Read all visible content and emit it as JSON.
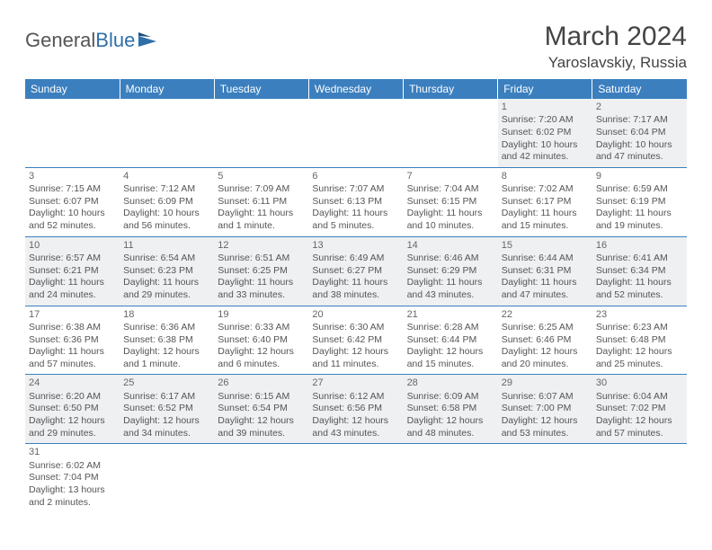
{
  "logo": {
    "part1": "General",
    "part2": "Blue"
  },
  "header": {
    "title": "March 2024",
    "location": "Yaroslavskiy, Russia"
  },
  "colors": {
    "header_bg": "#3b7fbf",
    "row_alt": "#eef0f1",
    "text": "#555555"
  },
  "weekdays": [
    "Sunday",
    "Monday",
    "Tuesday",
    "Wednesday",
    "Thursday",
    "Friday",
    "Saturday"
  ],
  "weeks": [
    [
      null,
      null,
      null,
      null,
      null,
      {
        "n": "1",
        "sr": "Sunrise: 7:20 AM",
        "ss": "Sunset: 6:02 PM",
        "dl1": "Daylight: 10 hours",
        "dl2": "and 42 minutes."
      },
      {
        "n": "2",
        "sr": "Sunrise: 7:17 AM",
        "ss": "Sunset: 6:04 PM",
        "dl1": "Daylight: 10 hours",
        "dl2": "and 47 minutes."
      }
    ],
    [
      {
        "n": "3",
        "sr": "Sunrise: 7:15 AM",
        "ss": "Sunset: 6:07 PM",
        "dl1": "Daylight: 10 hours",
        "dl2": "and 52 minutes."
      },
      {
        "n": "4",
        "sr": "Sunrise: 7:12 AM",
        "ss": "Sunset: 6:09 PM",
        "dl1": "Daylight: 10 hours",
        "dl2": "and 56 minutes."
      },
      {
        "n": "5",
        "sr": "Sunrise: 7:09 AM",
        "ss": "Sunset: 6:11 PM",
        "dl1": "Daylight: 11 hours",
        "dl2": "and 1 minute."
      },
      {
        "n": "6",
        "sr": "Sunrise: 7:07 AM",
        "ss": "Sunset: 6:13 PM",
        "dl1": "Daylight: 11 hours",
        "dl2": "and 5 minutes."
      },
      {
        "n": "7",
        "sr": "Sunrise: 7:04 AM",
        "ss": "Sunset: 6:15 PM",
        "dl1": "Daylight: 11 hours",
        "dl2": "and 10 minutes."
      },
      {
        "n": "8",
        "sr": "Sunrise: 7:02 AM",
        "ss": "Sunset: 6:17 PM",
        "dl1": "Daylight: 11 hours",
        "dl2": "and 15 minutes."
      },
      {
        "n": "9",
        "sr": "Sunrise: 6:59 AM",
        "ss": "Sunset: 6:19 PM",
        "dl1": "Daylight: 11 hours",
        "dl2": "and 19 minutes."
      }
    ],
    [
      {
        "n": "10",
        "sr": "Sunrise: 6:57 AM",
        "ss": "Sunset: 6:21 PM",
        "dl1": "Daylight: 11 hours",
        "dl2": "and 24 minutes."
      },
      {
        "n": "11",
        "sr": "Sunrise: 6:54 AM",
        "ss": "Sunset: 6:23 PM",
        "dl1": "Daylight: 11 hours",
        "dl2": "and 29 minutes."
      },
      {
        "n": "12",
        "sr": "Sunrise: 6:51 AM",
        "ss": "Sunset: 6:25 PM",
        "dl1": "Daylight: 11 hours",
        "dl2": "and 33 minutes."
      },
      {
        "n": "13",
        "sr": "Sunrise: 6:49 AM",
        "ss": "Sunset: 6:27 PM",
        "dl1": "Daylight: 11 hours",
        "dl2": "and 38 minutes."
      },
      {
        "n": "14",
        "sr": "Sunrise: 6:46 AM",
        "ss": "Sunset: 6:29 PM",
        "dl1": "Daylight: 11 hours",
        "dl2": "and 43 minutes."
      },
      {
        "n": "15",
        "sr": "Sunrise: 6:44 AM",
        "ss": "Sunset: 6:31 PM",
        "dl1": "Daylight: 11 hours",
        "dl2": "and 47 minutes."
      },
      {
        "n": "16",
        "sr": "Sunrise: 6:41 AM",
        "ss": "Sunset: 6:34 PM",
        "dl1": "Daylight: 11 hours",
        "dl2": "and 52 minutes."
      }
    ],
    [
      {
        "n": "17",
        "sr": "Sunrise: 6:38 AM",
        "ss": "Sunset: 6:36 PM",
        "dl1": "Daylight: 11 hours",
        "dl2": "and 57 minutes."
      },
      {
        "n": "18",
        "sr": "Sunrise: 6:36 AM",
        "ss": "Sunset: 6:38 PM",
        "dl1": "Daylight: 12 hours",
        "dl2": "and 1 minute."
      },
      {
        "n": "19",
        "sr": "Sunrise: 6:33 AM",
        "ss": "Sunset: 6:40 PM",
        "dl1": "Daylight: 12 hours",
        "dl2": "and 6 minutes."
      },
      {
        "n": "20",
        "sr": "Sunrise: 6:30 AM",
        "ss": "Sunset: 6:42 PM",
        "dl1": "Daylight: 12 hours",
        "dl2": "and 11 minutes."
      },
      {
        "n": "21",
        "sr": "Sunrise: 6:28 AM",
        "ss": "Sunset: 6:44 PM",
        "dl1": "Daylight: 12 hours",
        "dl2": "and 15 minutes."
      },
      {
        "n": "22",
        "sr": "Sunrise: 6:25 AM",
        "ss": "Sunset: 6:46 PM",
        "dl1": "Daylight: 12 hours",
        "dl2": "and 20 minutes."
      },
      {
        "n": "23",
        "sr": "Sunrise: 6:23 AM",
        "ss": "Sunset: 6:48 PM",
        "dl1": "Daylight: 12 hours",
        "dl2": "and 25 minutes."
      }
    ],
    [
      {
        "n": "24",
        "sr": "Sunrise: 6:20 AM",
        "ss": "Sunset: 6:50 PM",
        "dl1": "Daylight: 12 hours",
        "dl2": "and 29 minutes."
      },
      {
        "n": "25",
        "sr": "Sunrise: 6:17 AM",
        "ss": "Sunset: 6:52 PM",
        "dl1": "Daylight: 12 hours",
        "dl2": "and 34 minutes."
      },
      {
        "n": "26",
        "sr": "Sunrise: 6:15 AM",
        "ss": "Sunset: 6:54 PM",
        "dl1": "Daylight: 12 hours",
        "dl2": "and 39 minutes."
      },
      {
        "n": "27",
        "sr": "Sunrise: 6:12 AM",
        "ss": "Sunset: 6:56 PM",
        "dl1": "Daylight: 12 hours",
        "dl2": "and 43 minutes."
      },
      {
        "n": "28",
        "sr": "Sunrise: 6:09 AM",
        "ss": "Sunset: 6:58 PM",
        "dl1": "Daylight: 12 hours",
        "dl2": "and 48 minutes."
      },
      {
        "n": "29",
        "sr": "Sunrise: 6:07 AM",
        "ss": "Sunset: 7:00 PM",
        "dl1": "Daylight: 12 hours",
        "dl2": "and 53 minutes."
      },
      {
        "n": "30",
        "sr": "Sunrise: 6:04 AM",
        "ss": "Sunset: 7:02 PM",
        "dl1": "Daylight: 12 hours",
        "dl2": "and 57 minutes."
      }
    ],
    [
      {
        "n": "31",
        "sr": "Sunrise: 6:02 AM",
        "ss": "Sunset: 7:04 PM",
        "dl1": "Daylight: 13 hours",
        "dl2": "and 2 minutes."
      },
      null,
      null,
      null,
      null,
      null,
      null
    ]
  ]
}
